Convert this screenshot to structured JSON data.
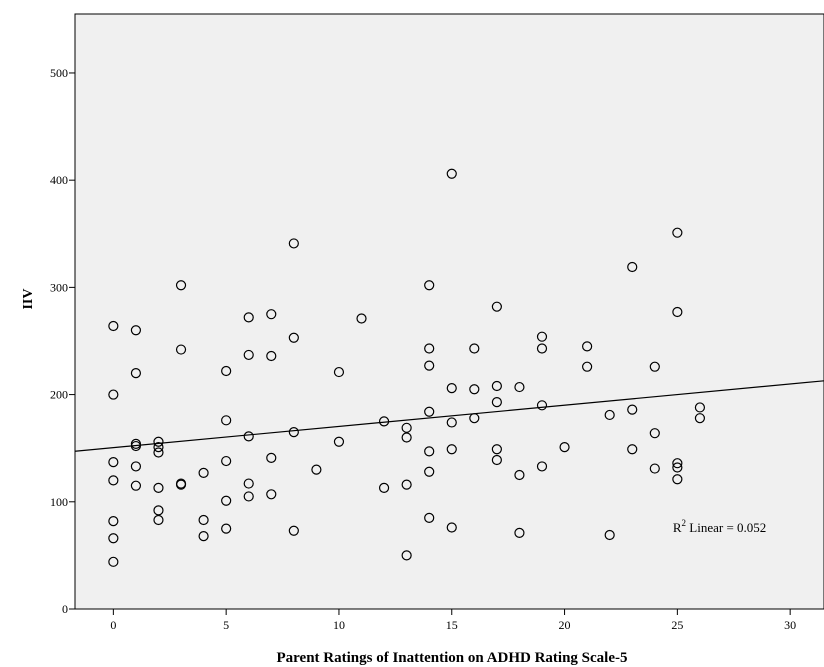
{
  "chart_data": {
    "type": "scatter",
    "title": "",
    "xlabel": "Parent Ratings of Inattention on ADHD Rating Scale-5",
    "ylabel": "IIV",
    "xlim": [
      -1.7,
      31.5
    ],
    "ylim": [
      0,
      555
    ],
    "xticks": [
      0,
      5,
      10,
      15,
      20,
      25,
      30
    ],
    "yticks": [
      0,
      100,
      200,
      300,
      400,
      500
    ],
    "grid": false,
    "background": "#f0f0f0",
    "marker_color": "#000000",
    "fit_line": {
      "intercept": 150.5,
      "slope": 1.98,
      "label_prefix": "R",
      "label_sup": "2",
      "label_rest": " Linear = 0.052"
    },
    "points": [
      {
        "x": 0,
        "y": 264
      },
      {
        "x": 0,
        "y": 200
      },
      {
        "x": 0,
        "y": 137
      },
      {
        "x": 0,
        "y": 120
      },
      {
        "x": 0,
        "y": 82
      },
      {
        "x": 0,
        "y": 66
      },
      {
        "x": 0,
        "y": 44
      },
      {
        "x": 1,
        "y": 260
      },
      {
        "x": 1,
        "y": 220
      },
      {
        "x": 1,
        "y": 154
      },
      {
        "x": 1,
        "y": 152
      },
      {
        "x": 1,
        "y": 133
      },
      {
        "x": 1,
        "y": 115
      },
      {
        "x": 2,
        "y": 156
      },
      {
        "x": 2,
        "y": 151
      },
      {
        "x": 2,
        "y": 146
      },
      {
        "x": 2,
        "y": 113
      },
      {
        "x": 2,
        "y": 92
      },
      {
        "x": 2,
        "y": 83
      },
      {
        "x": 3,
        "y": 302
      },
      {
        "x": 3,
        "y": 242
      },
      {
        "x": 3,
        "y": 117
      },
      {
        "x": 3,
        "y": 116
      },
      {
        "x": 4,
        "y": 127
      },
      {
        "x": 4,
        "y": 83
      },
      {
        "x": 4,
        "y": 68
      },
      {
        "x": 5,
        "y": 222
      },
      {
        "x": 5,
        "y": 176
      },
      {
        "x": 5,
        "y": 138
      },
      {
        "x": 5,
        "y": 101
      },
      {
        "x": 5,
        "y": 75
      },
      {
        "x": 6,
        "y": 272
      },
      {
        "x": 6,
        "y": 237
      },
      {
        "x": 6,
        "y": 161
      },
      {
        "x": 6,
        "y": 117
      },
      {
        "x": 6,
        "y": 105
      },
      {
        "x": 7,
        "y": 275
      },
      {
        "x": 7,
        "y": 236
      },
      {
        "x": 7,
        "y": 141
      },
      {
        "x": 7,
        "y": 107
      },
      {
        "x": 8,
        "y": 341
      },
      {
        "x": 8,
        "y": 253
      },
      {
        "x": 8,
        "y": 165
      },
      {
        "x": 8,
        "y": 73
      },
      {
        "x": 9,
        "y": 130
      },
      {
        "x": 10,
        "y": 221
      },
      {
        "x": 10,
        "y": 156
      },
      {
        "x": 11,
        "y": 271
      },
      {
        "x": 12,
        "y": 175
      },
      {
        "x": 12,
        "y": 113
      },
      {
        "x": 13,
        "y": 169
      },
      {
        "x": 13,
        "y": 160
      },
      {
        "x": 13,
        "y": 116
      },
      {
        "x": 13,
        "y": 50
      },
      {
        "x": 14,
        "y": 302
      },
      {
        "x": 14,
        "y": 243
      },
      {
        "x": 14,
        "y": 227
      },
      {
        "x": 14,
        "y": 184
      },
      {
        "x": 14,
        "y": 147
      },
      {
        "x": 14,
        "y": 128
      },
      {
        "x": 14,
        "y": 85
      },
      {
        "x": 15,
        "y": 406
      },
      {
        "x": 15,
        "y": 206
      },
      {
        "x": 15,
        "y": 174
      },
      {
        "x": 15,
        "y": 149
      },
      {
        "x": 15,
        "y": 76
      },
      {
        "x": 16,
        "y": 243
      },
      {
        "x": 16,
        "y": 205
      },
      {
        "x": 16,
        "y": 178
      },
      {
        "x": 17,
        "y": 282
      },
      {
        "x": 17,
        "y": 208
      },
      {
        "x": 17,
        "y": 193
      },
      {
        "x": 17,
        "y": 149
      },
      {
        "x": 17,
        "y": 139
      },
      {
        "x": 18,
        "y": 207
      },
      {
        "x": 18,
        "y": 125
      },
      {
        "x": 18,
        "y": 71
      },
      {
        "x": 19,
        "y": 254
      },
      {
        "x": 19,
        "y": 243
      },
      {
        "x": 19,
        "y": 190
      },
      {
        "x": 19,
        "y": 133
      },
      {
        "x": 20,
        "y": 151
      },
      {
        "x": 21,
        "y": 245
      },
      {
        "x": 21,
        "y": 226
      },
      {
        "x": 22,
        "y": 181
      },
      {
        "x": 22,
        "y": 69
      },
      {
        "x": 23,
        "y": 319
      },
      {
        "x": 23,
        "y": 186
      },
      {
        "x": 23,
        "y": 149
      },
      {
        "x": 24,
        "y": 226
      },
      {
        "x": 24,
        "y": 164
      },
      {
        "x": 24,
        "y": 131
      },
      {
        "x": 25,
        "y": 351
      },
      {
        "x": 25,
        "y": 277
      },
      {
        "x": 25,
        "y": 136
      },
      {
        "x": 25,
        "y": 132
      },
      {
        "x": 25,
        "y": 121
      },
      {
        "x": 26,
        "y": 188
      },
      {
        "x": 26,
        "y": 178
      }
    ]
  }
}
